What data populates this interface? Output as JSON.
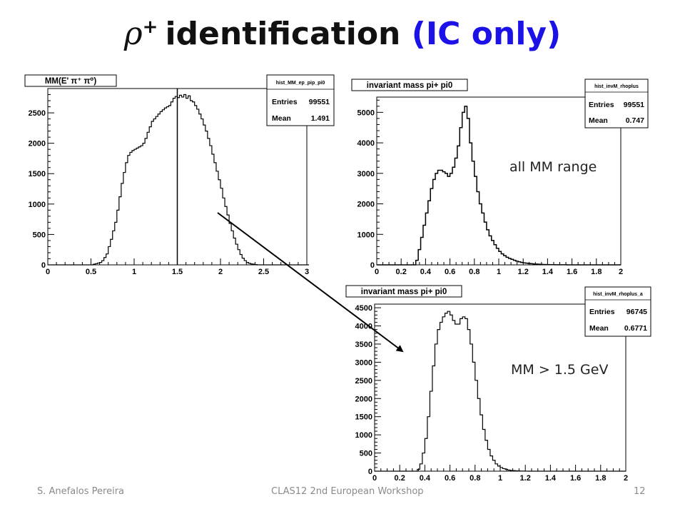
{
  "slide": {
    "title_symbol": "ρ",
    "title_superscript": "+",
    "title_text": "identification",
    "title_highlight": "(IC only)",
    "highlight_color": "#1c12e8"
  },
  "footer": {
    "author": "S. Anefalos Pereira",
    "event": "CLAS12 2nd European Workshop",
    "page": "12"
  },
  "annotations": {
    "all_range": "all MM range",
    "cut_range": "MM > 1.5 GeV"
  },
  "chart_data": [
    {
      "type": "histogram",
      "title": "MM(E' π⁺ π⁰)",
      "stats": {
        "name": "hist_MM_ep_pip_pi0",
        "entries_label": "Entries",
        "entries": "99551",
        "mean_label": "Mean",
        "mean": "1.491"
      },
      "xlim": [
        0,
        3
      ],
      "ylim": [
        0,
        2900
      ],
      "xticks": [
        0,
        0.5,
        1,
        1.5,
        2,
        2.5,
        3
      ],
      "xtick_labels": [
        "0",
        "0.5",
        "1",
        "1.5",
        "2",
        "2.5",
        "3"
      ],
      "yticks": [
        0,
        500,
        1000,
        1500,
        2000,
        2500
      ],
      "ytick_labels": [
        "0",
        "500",
        "1000",
        "1500",
        "2000",
        "2500"
      ],
      "cut_line_x": 1.5,
      "bin_width": 0.025,
      "x_start": 0.0,
      "values": [
        0,
        0,
        0,
        0,
        0,
        0,
        0,
        0,
        0,
        0,
        0,
        0,
        0,
        0,
        0,
        0,
        0,
        0,
        0,
        0,
        0,
        10,
        20,
        30,
        40,
        70,
        120,
        180,
        300,
        420,
        560,
        700,
        900,
        1120,
        1340,
        1520,
        1680,
        1800,
        1850,
        1880,
        1900,
        1920,
        1940,
        1960,
        2000,
        2080,
        2180,
        2270,
        2360,
        2400,
        2440,
        2480,
        2520,
        2550,
        2580,
        2600,
        2620,
        2680,
        2740,
        2770,
        2750,
        2790,
        2760,
        2800,
        2740,
        2780,
        2700,
        2680,
        2620,
        2560,
        2480,
        2400,
        2300,
        2200,
        2080,
        1960,
        1820,
        1680,
        1540,
        1400,
        1260,
        1100,
        960,
        820,
        680,
        560,
        440,
        340,
        250,
        170,
        110,
        70,
        40,
        25,
        15,
        10,
        5,
        0,
        0,
        0,
        0,
        0,
        0,
        0,
        0,
        0,
        0,
        0,
        0,
        0,
        0,
        0,
        0,
        0,
        0,
        0,
        0,
        0,
        0,
        0,
        0
      ]
    },
    {
      "type": "histogram",
      "title": "invariant mass pi+ pi0",
      "stats": {
        "name": "hist_invM_rhoplus",
        "entries_label": "Entries",
        "entries": "99551",
        "mean_label": "Mean",
        "mean": "0.747"
      },
      "xlim": [
        0,
        2
      ],
      "ylim": [
        0,
        5500
      ],
      "xticks": [
        0,
        0.2,
        0.4,
        0.6,
        0.8,
        1,
        1.2,
        1.4,
        1.6,
        1.8,
        2
      ],
      "xtick_labels": [
        "0",
        "0.2",
        "0.4",
        "0.6",
        "0.8",
        "1",
        "1.2",
        "1.4",
        "1.6",
        "1.8",
        "2"
      ],
      "yticks": [
        0,
        1000,
        2000,
        3000,
        4000,
        5000
      ],
      "ytick_labels": [
        "0",
        "1000",
        "2000",
        "3000",
        "4000",
        "5000"
      ],
      "bin_width": 0.02,
      "x_start": 0.0,
      "values": [
        0,
        0,
        0,
        0,
        0,
        0,
        0,
        0,
        0,
        0,
        0,
        0,
        0,
        0,
        0,
        0,
        150,
        500,
        900,
        1300,
        1700,
        2100,
        2500,
        2800,
        3000,
        3100,
        3100,
        3050,
        3000,
        2900,
        3000,
        3200,
        3500,
        3900,
        4500,
        5000,
        5200,
        4800,
        4000,
        3400,
        2900,
        2400,
        2000,
        1700,
        1400,
        1150,
        950,
        800,
        660,
        540,
        440,
        360,
        300,
        250,
        210,
        180,
        150,
        120,
        100,
        80,
        65,
        55,
        45,
        38,
        30,
        25,
        20,
        15,
        12,
        10,
        8,
        6,
        5,
        4,
        3,
        3,
        2,
        2,
        1,
        1,
        0,
        0,
        0,
        0,
        0,
        0,
        0,
        0,
        0,
        0,
        0,
        0,
        0,
        0,
        0,
        0,
        0,
        0,
        0,
        0
      ]
    },
    {
      "type": "histogram",
      "title": "invariant mass pi+ pi0",
      "stats": {
        "name": "hist_invM_rhoplus_a",
        "entries_label": "Entries",
        "entries": "96745",
        "mean_label": "Mean",
        "mean": "0.6771"
      },
      "xlim": [
        0,
        2
      ],
      "ylim": [
        0,
        4600
      ],
      "xticks": [
        0,
        0.2,
        0.4,
        0.6,
        0.8,
        1,
        1.2,
        1.4,
        1.6,
        1.8,
        2
      ],
      "xtick_labels": [
        "0",
        "0.2",
        "0.4",
        "0.6",
        "0.8",
        "1",
        "1.2",
        "1.4",
        "1.6",
        "1.8",
        "2"
      ],
      "yticks": [
        0,
        500,
        1000,
        1500,
        2000,
        2500,
        3000,
        3500,
        4000,
        4500
      ],
      "ytick_labels": [
        "0",
        "500",
        "1000",
        "1500",
        "2000",
        "2500",
        "3000",
        "3500",
        "4000",
        "4500"
      ],
      "bin_width": 0.02,
      "x_start": 0.0,
      "values": [
        0,
        0,
        0,
        0,
        0,
        0,
        0,
        0,
        0,
        0,
        0,
        0,
        0,
        0,
        0,
        0,
        0,
        50,
        200,
        500,
        900,
        1500,
        2200,
        2900,
        3500,
        3900,
        4100,
        4250,
        4350,
        4400,
        4300,
        4150,
        4050,
        4050,
        4200,
        4250,
        4200,
        3900,
        3500,
        3000,
        2500,
        2000,
        1550,
        1150,
        850,
        600,
        420,
        300,
        200,
        140,
        100,
        70,
        50,
        30,
        20,
        15,
        10,
        5,
        3,
        2,
        1,
        0,
        0,
        0,
        0,
        0,
        0,
        0,
        0,
        0,
        0,
        0,
        0,
        0,
        0,
        0,
        0,
        0,
        0,
        0,
        0,
        0,
        0,
        0,
        0,
        0,
        0,
        0,
        0,
        0,
        0,
        0,
        0,
        0,
        0,
        0,
        0,
        0,
        0,
        0
      ]
    }
  ]
}
